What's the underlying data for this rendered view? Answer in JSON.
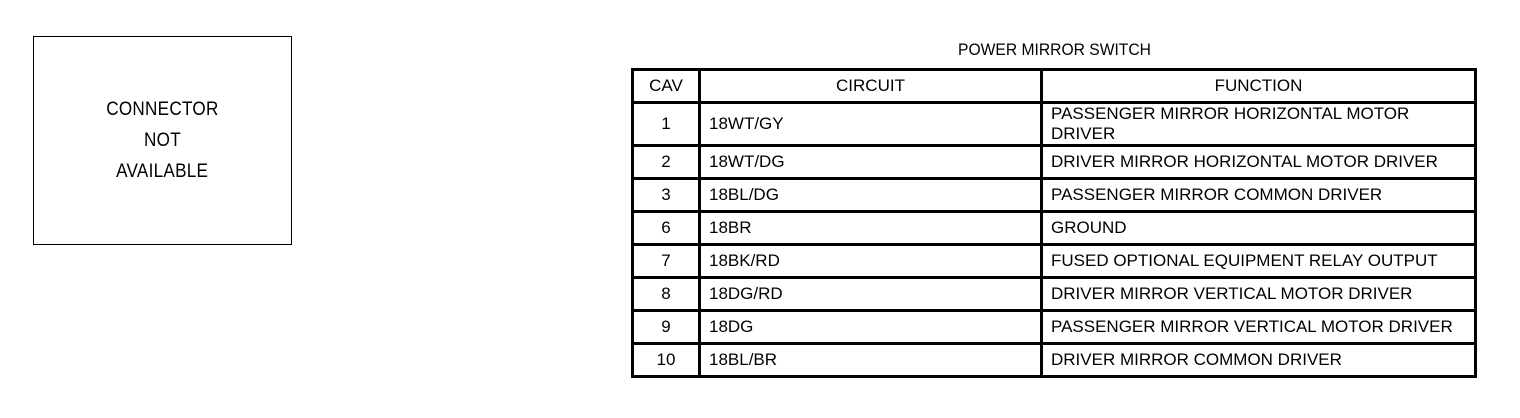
{
  "connector_box": {
    "lines": [
      "CONNECTOR",
      "NOT",
      "AVAILABLE"
    ]
  },
  "table": {
    "title": "POWER MIRROR SWITCH",
    "headers": [
      "CAV",
      "CIRCUIT",
      "FUNCTION"
    ],
    "rows": [
      [
        "1",
        "18WT/GY",
        "PASSENGER MIRROR HORIZONTAL MOTOR DRIVER"
      ],
      [
        "2",
        "18WT/DG",
        "DRIVER MIRROR HORIZONTAL MOTOR DRIVER"
      ],
      [
        "3",
        "18BL/DG",
        "PASSENGER MIRROR COMMON DRIVER"
      ],
      [
        "6",
        "18BR",
        "GROUND"
      ],
      [
        "7",
        "18BK/RD",
        "FUSED OPTIONAL EQUIPMENT RELAY OUTPUT"
      ],
      [
        "8",
        "18DG/RD",
        "DRIVER MIRROR VERTICAL MOTOR DRIVER"
      ],
      [
        "9",
        "18DG",
        "PASSENGER MIRROR VERTICAL MOTOR DRIVER"
      ],
      [
        "10",
        "18BL/BR",
        "DRIVER MIRROR COMMON DRIVER"
      ]
    ]
  }
}
